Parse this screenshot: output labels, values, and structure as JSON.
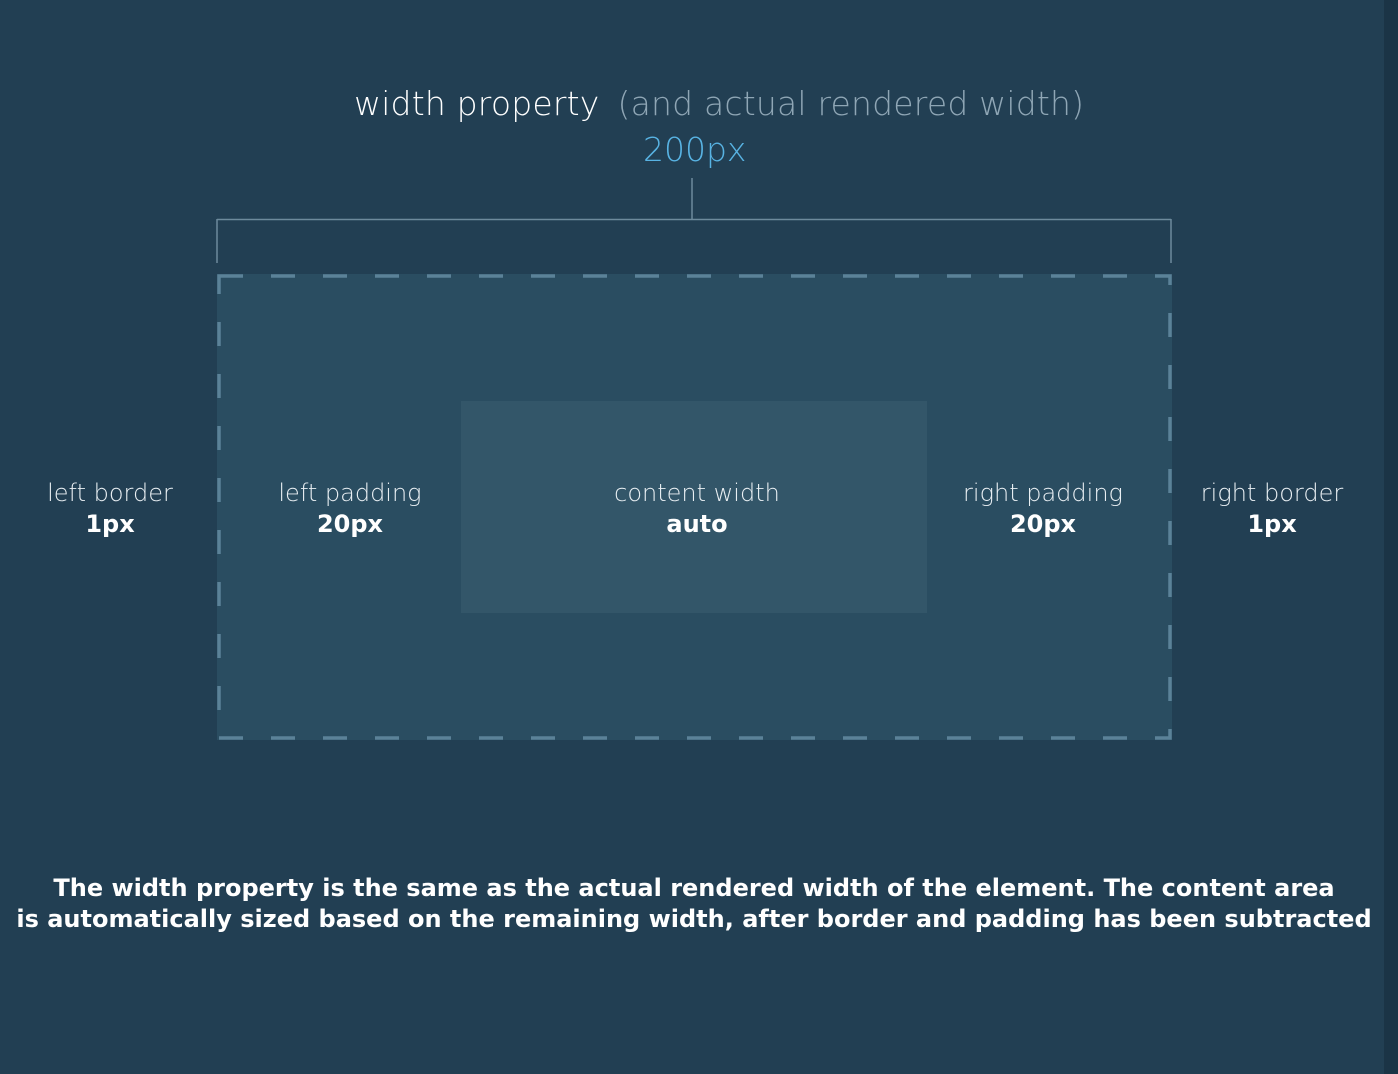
{
  "title": {
    "main": "width property",
    "sub": "(and actual rendered width)"
  },
  "width_value": "200px",
  "labels": {
    "left_border": {
      "name": "left border",
      "value": "1px"
    },
    "left_padding": {
      "name": "left padding",
      "value": "20px"
    },
    "content": {
      "name": "content width",
      "value": "auto"
    },
    "right_padding": {
      "name": "right padding",
      "value": "20px"
    },
    "right_border": {
      "name": "right border",
      "value": "1px"
    }
  },
  "caption": {
    "line1": "The width property is the same as the actual rendered width of the element. The content area",
    "line2": "is automatically sized based on the remaining width, after border and padding has been subtracted"
  },
  "colors": {
    "background": "#223f53",
    "outer_box": "#2a4d61",
    "content_box": "#335669",
    "dashed_border": "#5b8298",
    "accent": "#58b3e3"
  }
}
